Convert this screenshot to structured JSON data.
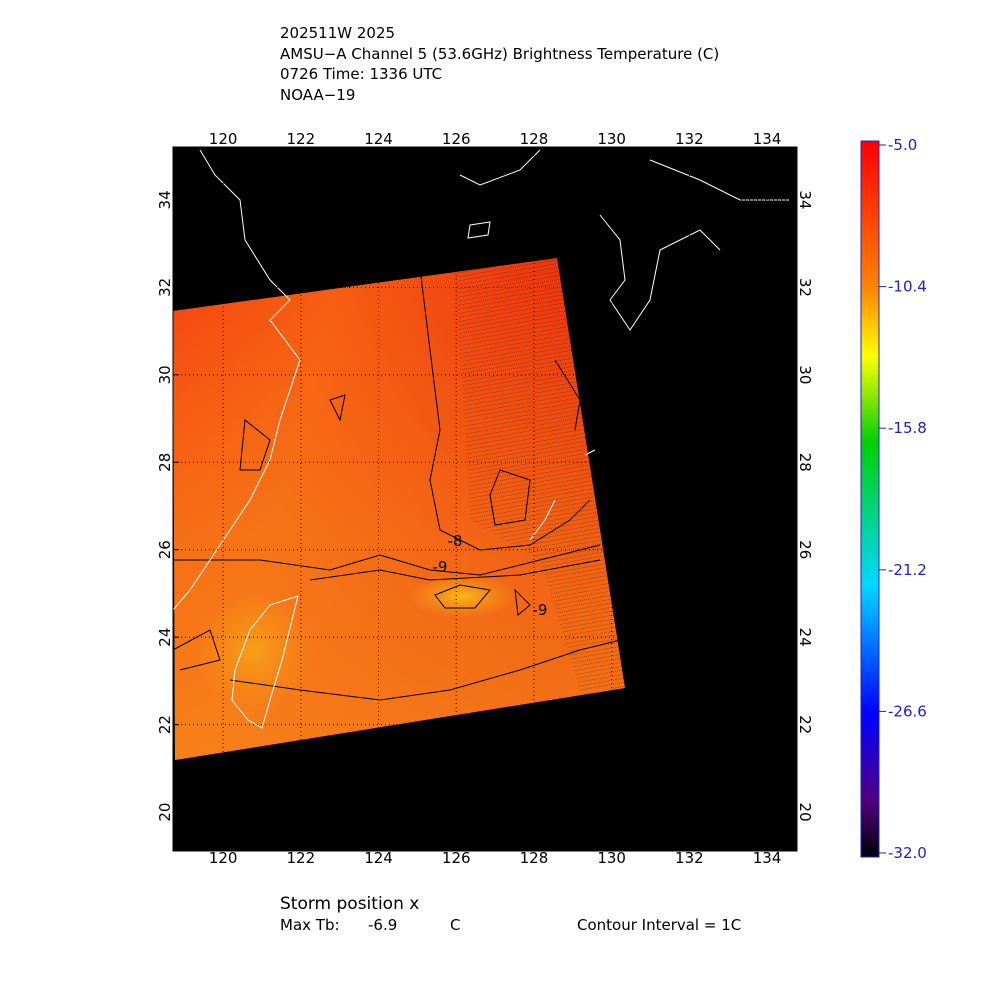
{
  "header": {
    "lines": [
      "202511W 2025",
      "AMSU−A Channel 5 (53.6GHz) Brightness Temperature (C)",
      "0726 Time: 1336 UTC",
      "NOAA−19"
    ]
  },
  "map": {
    "xlim": [
      118.71,
      134.77
    ],
    "ylim": [
      19.11,
      35.21
    ],
    "xticks": [
      120,
      122,
      124,
      126,
      128,
      130,
      132,
      134
    ],
    "yticks": [
      20,
      22,
      24,
      26,
      28,
      30,
      32,
      34
    ],
    "contour_labels": [
      "-8",
      "-9",
      "-9"
    ]
  },
  "colorbar": {
    "clim": [
      -32,
      -5
    ],
    "ticks": [
      {
        "value": -5,
        "label": "-5.0"
      },
      {
        "value": -10.4,
        "label": "-10.4"
      },
      {
        "value": -15.8,
        "label": "-15.8"
      },
      {
        "value": -21.2,
        "label": "-21.2"
      },
      {
        "value": -26.6,
        "label": "-26.6"
      },
      {
        "value": -32,
        "label": "-32.0"
      }
    ]
  },
  "footer": {
    "storm_position": "Storm position x",
    "max_tb_label": "Max Tb:",
    "max_tb_value": -6.9,
    "max_tb_unit": "C",
    "contour_interval": "Contour Interval = 1C"
  }
}
